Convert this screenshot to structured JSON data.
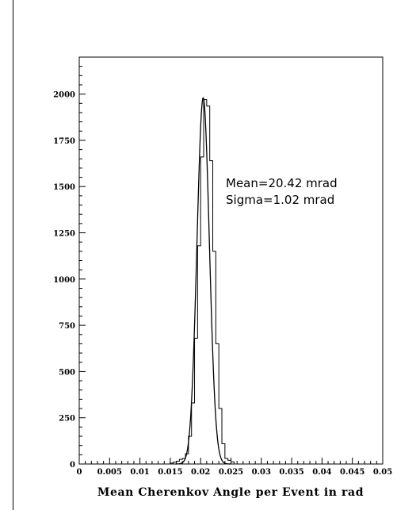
{
  "chart_data": {
    "type": "histogram",
    "title": "",
    "xlabel": "Mean Cherenkov Angle per Event in rad",
    "ylabel": "",
    "xlim": [
      0,
      0.05
    ],
    "ylim": [
      0,
      2200
    ],
    "x_ticks": [
      "0",
      "0.005",
      "0.01",
      "0.015",
      "0.02",
      "0.025",
      "0.03",
      "0.035",
      "0.04",
      "0.045",
      "0.05"
    ],
    "y_ticks": [
      "0",
      "250",
      "500",
      "750",
      "1000",
      "1250",
      "1500",
      "1750",
      "2000"
    ],
    "grid": false,
    "annotations": [
      "Mean=20.42 mrad",
      "Sigma=1.02 mrad"
    ],
    "bin_width": 0.0005,
    "bins": [
      {
        "x": 0.015,
        "y": 5
      },
      {
        "x": 0.0155,
        "y": 10
      },
      {
        "x": 0.016,
        "y": 15
      },
      {
        "x": 0.0165,
        "y": 25
      },
      {
        "x": 0.017,
        "y": 30
      },
      {
        "x": 0.0175,
        "y": 55
      },
      {
        "x": 0.018,
        "y": 150
      },
      {
        "x": 0.0185,
        "y": 330
      },
      {
        "x": 0.019,
        "y": 680
      },
      {
        "x": 0.0195,
        "y": 1180
      },
      {
        "x": 0.02,
        "y": 1660
      },
      {
        "x": 0.0205,
        "y": 1970
      },
      {
        "x": 0.021,
        "y": 1935
      },
      {
        "x": 0.0215,
        "y": 1640
      },
      {
        "x": 0.022,
        "y": 1150
      },
      {
        "x": 0.0225,
        "y": 650
      },
      {
        "x": 0.023,
        "y": 300
      },
      {
        "x": 0.0235,
        "y": 110
      },
      {
        "x": 0.024,
        "y": 30
      },
      {
        "x": 0.0245,
        "y": 20
      },
      {
        "x": 0.025,
        "y": 12
      }
    ],
    "fit": {
      "type": "gaussian",
      "mean": 0.02042,
      "sigma": 0.00102,
      "amplitude": 1980
    }
  }
}
